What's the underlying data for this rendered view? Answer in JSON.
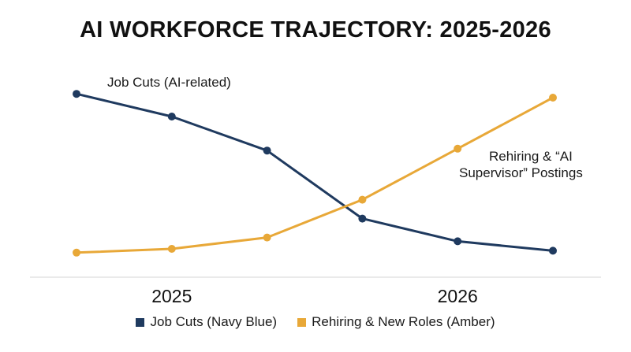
{
  "chart_data": {
    "type": "line",
    "title": "AI WORKFORCE TRAJECTORY: 2025-2026",
    "xlabel": "",
    "ylabel": "",
    "x": [
      1,
      2,
      3,
      4,
      5,
      6
    ],
    "tick_labels": [
      {
        "x": 2,
        "label": "2025"
      },
      {
        "x": 5,
        "label": "2026"
      }
    ],
    "ylim": [
      0,
      100
    ],
    "grid": false,
    "legend_position": "bottom",
    "series": [
      {
        "name": "Job Cuts (Navy Blue)",
        "color": "#1f3a5f",
        "values": [
          92,
          80,
          62,
          26,
          14,
          9
        ]
      },
      {
        "name": "Rehiring & New Roles (Amber)",
        "color": "#e8a838",
        "values": [
          8,
          10,
          16,
          36,
          63,
          90
        ]
      }
    ],
    "annotations": [
      {
        "text": "Job Cuts (AI-related)",
        "series": 0,
        "point": 0
      },
      {
        "text": "Rehiring & “AI",
        "series": 1,
        "point": 4
      },
      {
        "text": "Supervisor” Postings",
        "series": 1,
        "point": 4
      }
    ]
  }
}
